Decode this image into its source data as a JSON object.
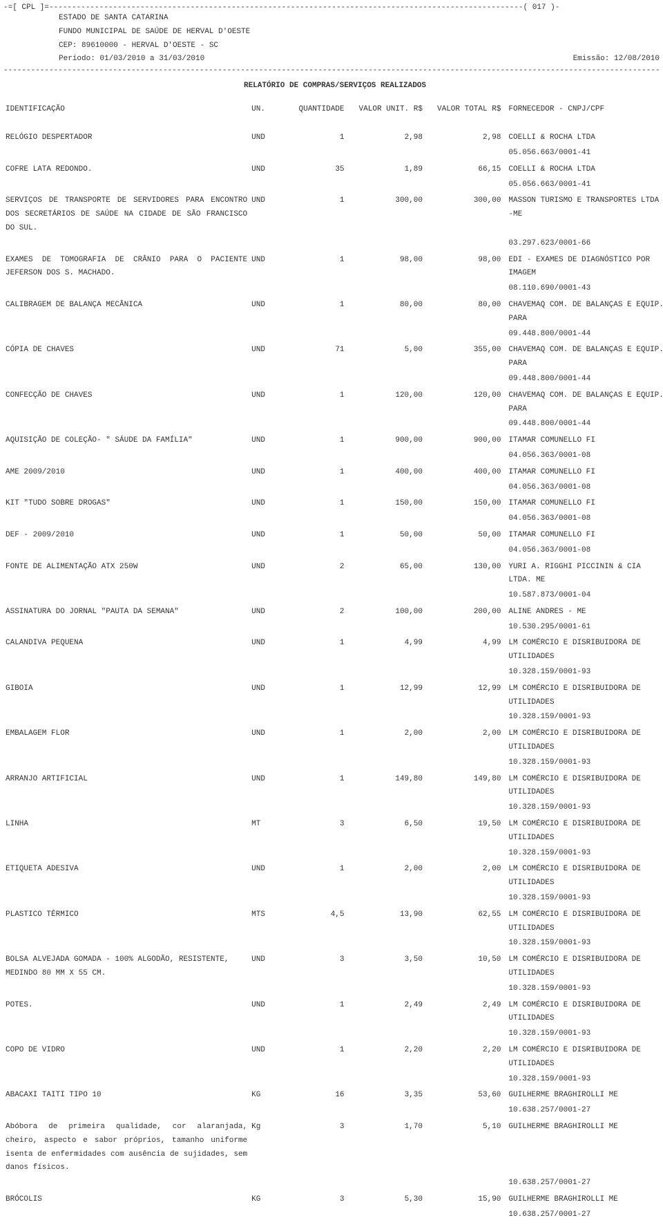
{
  "header": {
    "top_line": "-=[ CPL ]=--------------------------------------------------------------------------------------------------------( 017 )-",
    "line1": "ESTADO DE SANTA CATARINA",
    "line2": "FUNDO MUNICIPAL DE SAÚDE DE HERVAL D'OESTE",
    "line3": "CEP: 89610000 - HERVAL D'OESTE - SC",
    "periodo": "Período: 01/03/2010 a 31/03/2010",
    "emissao": "Emissão: 12/08/2010",
    "title": "RELATÓRIO DE COMPRAS/SERVIÇOS REALIZADOS"
  },
  "columns": {
    "id": "IDENTIFICAÇÃO",
    "un": "UN.",
    "qtd": "QUANTIDADE",
    "unit": "VALOR UNIT. R$",
    "total": "VALOR TOTAL R$",
    "forn": "FORNECEDOR - CNPJ/CPF"
  },
  "rows": [
    {
      "id": "RELÓGIO DESPERTADOR",
      "un": "UND",
      "qtd": "1",
      "unit": "2,98",
      "total": "2,98",
      "forn": "COELLI & ROCHA LTDA",
      "cnpj": "05.056.663/0001-41"
    },
    {
      "id": "COFRE LATA REDONDO.",
      "un": "UND",
      "qtd": "35",
      "unit": "1,89",
      "total": "66,15",
      "forn": "COELLI & ROCHA LTDA",
      "cnpj": "05.056.663/0001-41"
    },
    {
      "id": "SERVIÇOS DE TRANSPORTE DE SERVIDORES PARA ENCONTRO DOS SECRETÁRIOS DE SAÚDE NA CIDADE DE SÃO FRANCISCO DO SUL.",
      "justify": true,
      "un": "UND",
      "qtd": "1",
      "unit": "300,00",
      "total": "300,00",
      "forn": "MASSON TURISMO E TRANSPORTES LTDA -ME",
      "cnpj": "03.297.623/0001-66"
    },
    {
      "id": "EXAMES DE TOMOGRAFIA DE CRÂNIO PARA O PACIENTE JEFERSON DOS S. MACHADO.",
      "justify": true,
      "un": "UND",
      "qtd": "1",
      "unit": "98,00",
      "total": "98,00",
      "forn": "EDI - EXAMES DE DIAGNÓSTICO POR IMAGEM",
      "cnpj": "08.110.690/0001-43"
    },
    {
      "id": "CALIBRAGEM DE BALANÇA MECÂNICA",
      "un": "UND",
      "qtd": "1",
      "unit": "80,00",
      "total": "80,00",
      "forn": "CHAVEMAQ COM. DE BALANÇAS E EQUIP. PARA",
      "cnpj": "09.448.800/0001-44"
    },
    {
      "id": "CÓPIA DE CHAVES",
      "un": "UND",
      "qtd": "71",
      "unit": "5,00",
      "total": "355,00",
      "forn": "CHAVEMAQ COM. DE BALANÇAS E EQUIP. PARA",
      "cnpj": "09.448.800/0001-44"
    },
    {
      "id": "CONFECÇÃO DE CHAVES",
      "un": "UND",
      "qtd": "1",
      "unit": "120,00",
      "total": "120,00",
      "forn": "CHAVEMAQ COM. DE BALANÇAS E EQUIP. PARA",
      "cnpj": "09.448.800/0001-44"
    },
    {
      "id": "AQUISIÇÃO DE COLEÇÃO- \" SÁUDE DA FAMÍLIA\"",
      "un": "UND",
      "qtd": "1",
      "unit": "900,00",
      "total": "900,00",
      "forn": "ITAMAR COMUNELLO FI",
      "cnpj": "04.056.363/0001-08"
    },
    {
      "id": "AME 2009/2010",
      "un": "UND",
      "qtd": "1",
      "unit": "400,00",
      "total": "400,00",
      "forn": "ITAMAR COMUNELLO FI",
      "cnpj": "04.056.363/0001-08"
    },
    {
      "id": "KIT \"TUDO SOBRE DROGAS\"",
      "un": "UND",
      "qtd": "1",
      "unit": "150,00",
      "total": "150,00",
      "forn": "ITAMAR COMUNELLO FI",
      "cnpj": "04.056.363/0001-08"
    },
    {
      "id": "DEF - 2009/2010",
      "un": "UND",
      "qtd": "1",
      "unit": "50,00",
      "total": "50,00",
      "forn": "ITAMAR COMUNELLO FI",
      "cnpj": "04.056.363/0001-08"
    },
    {
      "id": "FONTE DE ALIMENTAÇÃO ATX 250W",
      "un": "UND",
      "qtd": "2",
      "unit": "65,00",
      "total": "130,00",
      "forn": "YURI A. RIGGHI PICCININ & CIA LTDA. ME",
      "cnpj": "10.587.873/0001-04"
    },
    {
      "id": "ASSINATURA DO JORNAL \"PAUTA DA SEMANA\"",
      "un": "UND",
      "qtd": "2",
      "unit": "100,00",
      "total": "200,00",
      "forn": "ALINE ANDRES - ME",
      "cnpj": "10.530.295/0001-61"
    },
    {
      "id": "CALANDIVA PEQUENA",
      "un": "UND",
      "qtd": "1",
      "unit": "4,99",
      "total": "4,99",
      "forn": "LM COMÉRCIO E DISRIBUIDORA DE UTILIDADES",
      "cnpj": "10.328.159/0001-93"
    },
    {
      "id": "GIBOIA",
      "un": "UND",
      "qtd": "1",
      "unit": "12,99",
      "total": "12,99",
      "forn": "LM COMÉRCIO E DISRIBUIDORA DE UTILIDADES",
      "cnpj": "10.328.159/0001-93"
    },
    {
      "id": "EMBALAGEM FLOR",
      "un": "UND",
      "qtd": "1",
      "unit": "2,00",
      "total": "2,00",
      "forn": "LM COMÉRCIO E DISRIBUIDORA DE UTILIDADES",
      "cnpj": "10.328.159/0001-93"
    },
    {
      "id": "ARRANJO ARTIFICIAL",
      "un": "UND",
      "qtd": "1",
      "unit": "149,80",
      "total": "149,80",
      "forn": "LM COMÉRCIO E DISRIBUIDORA DE UTILIDADES",
      "cnpj": "10.328.159/0001-93"
    },
    {
      "id": "LINHA",
      "un": "MT",
      "qtd": "3",
      "unit": "6,50",
      "total": "19,50",
      "forn": "LM COMÉRCIO E DISRIBUIDORA DE UTILIDADES",
      "cnpj": "10.328.159/0001-93"
    },
    {
      "id": "ETIQUETA ADESIVA",
      "un": "UND",
      "qtd": "1",
      "unit": "2,00",
      "total": "2,00",
      "forn": "LM COMÉRCIO E DISRIBUIDORA DE UTILIDADES",
      "cnpj": "10.328.159/0001-93"
    },
    {
      "id": "PLASTICO TÉRMICO",
      "un": "MTS",
      "qtd": "4,5",
      "unit": "13,90",
      "total": "62,55",
      "forn": "LM COMÉRCIO E DISRIBUIDORA DE UTILIDADES",
      "cnpj": "10.328.159/0001-93"
    },
    {
      "id": "BOLSA ALVEJADA GOMADA - 100% ALGODÃO, RESISTENTE, MEDINDO 80 MM X 55 CM.",
      "un": "UND",
      "qtd": "3",
      "unit": "3,50",
      "total": "10,50",
      "forn": "LM COMÉRCIO E DISRIBUIDORA DE UTILIDADES",
      "cnpj": "10.328.159/0001-93"
    },
    {
      "id": "POTES.",
      "un": "UND",
      "qtd": "1",
      "unit": "2,49",
      "total": "2,49",
      "forn": "LM COMÉRCIO E DISRIBUIDORA DE UTILIDADES",
      "cnpj": "10.328.159/0001-93"
    },
    {
      "id": "COPO DE VIDRO",
      "un": "UND",
      "qtd": "1",
      "unit": "2,20",
      "total": "2,20",
      "forn": "LM COMÉRCIO E DISRIBUIDORA DE UTILIDADES",
      "cnpj": "10.328.159/0001-93"
    },
    {
      "id": "ABACAXI TAITI TIPO 10",
      "un": "KG",
      "qtd": "16",
      "unit": "3,35",
      "total": "53,60",
      "forn": "GUILHERME BRAGHIROLLI ME",
      "cnpj": "10.638.257/0001-27"
    },
    {
      "id": "Abóbora de primeira qualidade, cor alaranjada, cheiro, aspecto e sabor próprios, tamanho uniforme isenta de enfermidades com ausência de sujidades, sem danos físicos.",
      "justify": true,
      "un": "Kg",
      "qtd": "3",
      "unit": "1,70",
      "total": "5,10",
      "forn": "GUILHERME BRAGHIROLLI ME",
      "cnpj": "10.638.257/0001-27"
    },
    {
      "id": "BRÓCOLIS",
      "un": "KG",
      "qtd": "3",
      "unit": "5,30",
      "total": "15,90",
      "forn": "GUILHERME BRAGHIROLLI ME",
      "cnpj": "10.638.257/0001-27"
    }
  ]
}
